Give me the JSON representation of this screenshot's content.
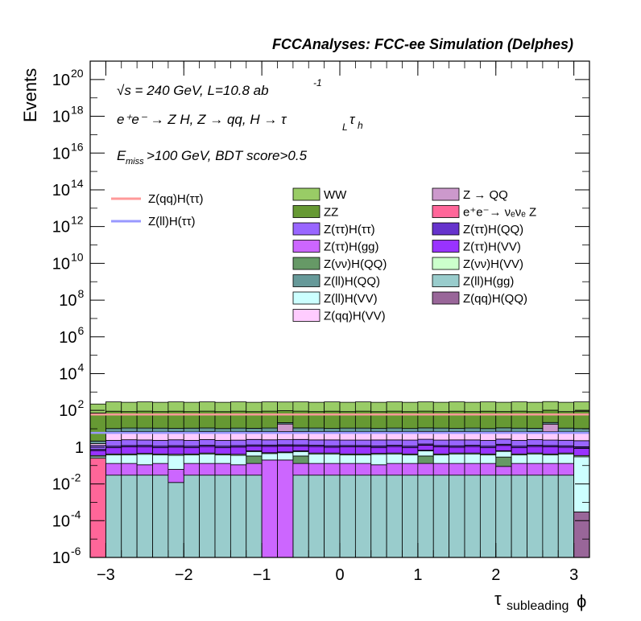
{
  "chart_data": {
    "type": "histogram",
    "title": "FCCAnalyses: FCC-ee Simulation (Delphes)",
    "xlabel": "τ subleading ϕ",
    "xlabel_main": "τ",
    "xlabel_sub": "subleading",
    "xlabel_end": "ϕ",
    "ylabel": "Events",
    "yscale": "log",
    "xlim": [
      -3.2,
      3.2
    ],
    "ylim": [
      1e-06,
      1e+21
    ],
    "x_ticks": [
      {
        "v": -3,
        "t": "−3"
      },
      {
        "v": -2,
        "t": "−2"
      },
      {
        "v": -1,
        "t": "−1"
      },
      {
        "v": 0,
        "t": "0"
      },
      {
        "v": 1,
        "t": "1"
      },
      {
        "v": 2,
        "t": "2"
      },
      {
        "v": 3,
        "t": "3"
      }
    ],
    "y_ticks": [
      {
        "e": -6,
        "t": "10",
        "s": "-6"
      },
      {
        "e": -4,
        "t": "10",
        "s": "-4"
      },
      {
        "e": -2,
        "t": "10",
        "s": "-2"
      },
      {
        "e": 0,
        "t": "1",
        "s": ""
      },
      {
        "e": 2,
        "t": "10",
        "s": "2"
      },
      {
        "e": 4,
        "t": "10",
        "s": "4"
      },
      {
        "e": 6,
        "t": "10",
        "s": "6"
      },
      {
        "e": 8,
        "t": "10",
        "s": "8"
      },
      {
        "e": 10,
        "t": "10",
        "s": "10"
      },
      {
        "e": 12,
        "t": "10",
        "s": "12"
      },
      {
        "e": 14,
        "t": "10",
        "s": "14"
      },
      {
        "e": 16,
        "t": "10",
        "s": "16"
      },
      {
        "e": 18,
        "t": "10",
        "s": "18"
      },
      {
        "e": 20,
        "t": "10",
        "s": "20"
      }
    ],
    "annotations": {
      "sqrt_s": "√s = 240 GeV, L=10.8 ab",
      "sqrt_s_sup": "-1",
      "process": "e⁺e⁻ → Z H, Z → qq, H → τ",
      "process_sub1": "L",
      "process_tau2": "τ",
      "process_sub2": "h",
      "cut_prefix": "E",
      "cut_sub": "miss",
      "cut_rest": ">100 GeV, BDT score>0.5"
    },
    "bin_edges": [
      -3.2,
      -3.0,
      -2.8,
      -2.6,
      -2.4,
      -2.2,
      -2.0,
      -1.8,
      -1.6,
      -1.4,
      -1.2,
      -1.0,
      -0.8,
      -0.6,
      -0.4,
      -0.2,
      0.0,
      0.2,
      0.4,
      0.6,
      0.8,
      1.0,
      1.2,
      1.4,
      1.6,
      1.8,
      2.0,
      2.2,
      2.4,
      2.6,
      2.8,
      3.0,
      3.2
    ],
    "stack_order_bottom_to_top": [
      "Z(ll)H(gg)",
      "Z(ττ)H(gg)",
      "Z(νν)H(QQ)",
      "e⁺e⁻→ νₑνₑ Z",
      "Z(qq)H(QQ)",
      "Z(ll)H(VV)",
      "Z(νν)H(VV)",
      "Z(ττ)H(VV)",
      "Z(ττ)H(QQ)",
      "Z(ττ)H(ττ)",
      "Z(qq)H(VV)",
      "Z → QQ",
      "Z(ll)H(QQ)",
      "ZZ",
      "WW"
    ],
    "series": [
      {
        "name": "Z(ll)H(gg)",
        "color": "#99cccc",
        "values": [
          0,
          0.03,
          0.03,
          0.03,
          0.03,
          0.012,
          0.03,
          0.03,
          0.03,
          0.03,
          0.03,
          0.0,
          0.0,
          0.03,
          0.03,
          0.03,
          0.03,
          0.03,
          0.03,
          0.03,
          0.03,
          0.03,
          0.03,
          0.03,
          0.03,
          0.03,
          0.03,
          0.03,
          0.03,
          0.03,
          0.03,
          0.0
        ]
      },
      {
        "name": "Z(ττ)H(gg)",
        "color": "#cc66ff",
        "values": [
          0,
          0.1,
          0.1,
          0.08,
          0.1,
          0.05,
          0.1,
          0.1,
          0.1,
          0.08,
          0.1,
          0.2,
          0.2,
          0.1,
          0.1,
          0.1,
          0.1,
          0.1,
          0.08,
          0.1,
          0.1,
          0.1,
          0.1,
          0.1,
          0.1,
          0.1,
          0.06,
          0.1,
          0.1,
          0.1,
          0.1,
          0.0
        ]
      },
      {
        "name": "Z(νν)H(QQ)",
        "color": "#669966",
        "values": [
          0,
          0,
          0,
          0,
          0,
          0,
          0,
          0,
          0,
          0,
          0.2,
          0,
          0,
          0.2,
          0,
          0,
          0,
          0,
          0,
          0,
          0,
          0.2,
          0,
          0,
          0,
          0,
          0.2,
          0,
          0,
          0,
          0,
          0
        ]
      },
      {
        "name": "e⁺e⁻→ νₑνₑ Z",
        "color": "#ff6699",
        "values": [
          0.25,
          0,
          0,
          0,
          0,
          0,
          0,
          0,
          0,
          0,
          0,
          0,
          0,
          0,
          0,
          0,
          0,
          0,
          0,
          0,
          0,
          0,
          0,
          0,
          0,
          0,
          0,
          0,
          0,
          0,
          0,
          0
        ]
      },
      {
        "name": "Z(qq)H(QQ)",
        "color": "#996699",
        "values": [
          0,
          0,
          0,
          0,
          0,
          0,
          0,
          0,
          0,
          0,
          0,
          0,
          0,
          0,
          0,
          0,
          0,
          0,
          0,
          0,
          0,
          0,
          0,
          0,
          0,
          0,
          0,
          0,
          0,
          0,
          0,
          0.0003
        ]
      },
      {
        "name": "Z(ll)H(VV)",
        "color": "#ccffff",
        "values": [
          0.05,
          0.25,
          0.25,
          0.3,
          0.25,
          0.3,
          0.25,
          0.3,
          0.25,
          0.25,
          0.25,
          0.25,
          0.3,
          0.25,
          0.3,
          0.3,
          0.25,
          0.25,
          0.3,
          0.3,
          0.25,
          0.3,
          0.25,
          0.3,
          0.3,
          0.25,
          0.3,
          0.25,
          0.3,
          0.25,
          0.3,
          0.3
        ]
      },
      {
        "name": "Z(νν)H(VV)",
        "color": "#ccffcc",
        "values": [
          0.05,
          0.05,
          0.05,
          0.05,
          0.05,
          0.05,
          0.05,
          0.05,
          0.05,
          0.05,
          0.05,
          0.05,
          0.05,
          0.05,
          0.05,
          0.05,
          0.05,
          0.05,
          0.05,
          0.05,
          0.05,
          0.05,
          0.05,
          0.05,
          0.05,
          0.05,
          0.05,
          0.05,
          0.05,
          0.05,
          0.05,
          0.05
        ]
      },
      {
        "name": "Z(ττ)H(VV)",
        "color": "#9933ff",
        "values": [
          0.3,
          0.5,
          0.6,
          0.6,
          0.5,
          0.6,
          0.5,
          0.6,
          0.5,
          0.6,
          0.5,
          0.6,
          0.6,
          0.5,
          0.6,
          0.5,
          0.6,
          0.6,
          0.5,
          0.6,
          0.5,
          0.6,
          0.6,
          0.5,
          0.6,
          0.5,
          0.6,
          0.5,
          0.6,
          0.6,
          0.5,
          0.5
        ]
      },
      {
        "name": "Z(ττ)H(QQ)",
        "color": "#6633cc",
        "values": [
          0.1,
          0.2,
          0.2,
          0.2,
          0.2,
          0.2,
          0.2,
          0.2,
          0.2,
          0.2,
          0.2,
          0.2,
          0.2,
          0.2,
          0.2,
          0.2,
          0.2,
          0.2,
          0.2,
          0.2,
          0.2,
          0.2,
          0.2,
          0.2,
          0.2,
          0.2,
          0.2,
          0.2,
          0.2,
          0.2,
          0.2,
          0.2
        ]
      },
      {
        "name": "Z(ττ)H(ττ)",
        "color": "#9966ff",
        "values": [
          0.5,
          1.2,
          1.3,
          1.2,
          1.2,
          1.3,
          1.2,
          1.3,
          1.2,
          1.2,
          1.3,
          1.2,
          1.2,
          1.3,
          1.2,
          1.3,
          1.2,
          1.2,
          1.3,
          1.2,
          1.3,
          1.2,
          1.2,
          1.3,
          1.2,
          1.2,
          1.3,
          1.2,
          1.3,
          1.2,
          1.2,
          1.2
        ]
      },
      {
        "name": "Z(qq)H(VV)",
        "color": "#ffccff",
        "values": [
          0.3,
          4.5,
          4.5,
          4.5,
          4.5,
          4.5,
          4.5,
          4.5,
          4.5,
          4.5,
          4.5,
          4.5,
          4.5,
          4.5,
          4.5,
          4.5,
          4.5,
          4.5,
          4.5,
          4.5,
          4.5,
          4.5,
          4.5,
          4.5,
          4.5,
          4.5,
          4.5,
          4.5,
          4.5,
          4.5,
          4.5,
          4.5
        ]
      },
      {
        "name": "Z → QQ",
        "color": "#cc99cc",
        "values": [
          0,
          0,
          0,
          0,
          0,
          0,
          0,
          0,
          0,
          0,
          0,
          0,
          11,
          0,
          0,
          0,
          0,
          0,
          0,
          0,
          0,
          0,
          0,
          0,
          0,
          0,
          0,
          0,
          0,
          11,
          0,
          0
        ]
      },
      {
        "name": "Z(ll)H(QQ)",
        "color": "#669999",
        "values": [
          0.6,
          3.5,
          4,
          4,
          4,
          3.5,
          4,
          4,
          3.5,
          4,
          3.5,
          4,
          3.5,
          4,
          4,
          3.5,
          4,
          4,
          3.5,
          4,
          3.5,
          4,
          4,
          3.5,
          4,
          3.5,
          4,
          4,
          3.5,
          4,
          4,
          3.5
        ]
      },
      {
        "name": "ZZ",
        "color": "#669933",
        "values": [
          70,
          80,
          75,
          80,
          75,
          80,
          75,
          80,
          75,
          80,
          75,
          80,
          75,
          80,
          75,
          80,
          75,
          80,
          75,
          80,
          75,
          80,
          75,
          80,
          75,
          80,
          75,
          80,
          75,
          80,
          75,
          80
        ]
      },
      {
        "name": "WW",
        "color": "#99cc66",
        "values": [
          150,
          200,
          190,
          200,
          190,
          200,
          190,
          200,
          190,
          200,
          190,
          200,
          190,
          200,
          190,
          200,
          190,
          200,
          190,
          200,
          190,
          200,
          190,
          200,
          190,
          200,
          190,
          200,
          190,
          200,
          190,
          200
        ]
      }
    ],
    "signal_lines": [
      {
        "name": "Z(qq)H(ττ)",
        "color": "#ff9999",
        "values": [
          60,
          60,
          60,
          60,
          60,
          60,
          60,
          60,
          60,
          60,
          60,
          60,
          60,
          60,
          60,
          60,
          60,
          60,
          60,
          60,
          60,
          60,
          60,
          60,
          60,
          60,
          60,
          60,
          60,
          60,
          60,
          60
        ]
      },
      {
        "name": "Z(ll)H(ττ)",
        "color": "#9999ff",
        "values": [
          6,
          6,
          6,
          6,
          6,
          6,
          6,
          6,
          6,
          6,
          6,
          6,
          6,
          6,
          6,
          6,
          6,
          6,
          6,
          6,
          6,
          6,
          6,
          6,
          6,
          6,
          6,
          6,
          6,
          6,
          6,
          6
        ]
      }
    ],
    "legend_lines": [
      {
        "label": "Z(qq)H(ττ)",
        "color": "#ff9999"
      },
      {
        "label": "Z(ll)H(ττ)",
        "color": "#9999ff"
      }
    ],
    "legend_boxes": [
      {
        "label": "WW",
        "color": "#99cc66"
      },
      {
        "label": "Z → QQ",
        "color": "#cc99cc"
      },
      {
        "label": "ZZ",
        "color": "#669933"
      },
      {
        "label": "e⁺e⁻→ νₑνₑ Z",
        "color": "#ff6699"
      },
      {
        "label": "Z(ττ)H(ττ)",
        "color": "#9966ff"
      },
      {
        "label": "Z(ττ)H(QQ)",
        "color": "#6633cc"
      },
      {
        "label": "Z(ττ)H(gg)",
        "color": "#cc66ff"
      },
      {
        "label": "Z(ττ)H(VV)",
        "color": "#9933ff"
      },
      {
        "label": "Z(νν)H(QQ)",
        "color": "#669966"
      },
      {
        "label": "Z(νν)H(VV)",
        "color": "#ccffcc"
      },
      {
        "label": "Z(ll)H(QQ)",
        "color": "#669999"
      },
      {
        "label": "Z(ll)H(gg)",
        "color": "#99cccc"
      },
      {
        "label": "Z(ll)H(VV)",
        "color": "#ccffff"
      },
      {
        "label": "Z(qq)H(QQ)",
        "color": "#996699"
      },
      {
        "label": "Z(qq)H(VV)",
        "color": "#ffccff"
      }
    ]
  }
}
